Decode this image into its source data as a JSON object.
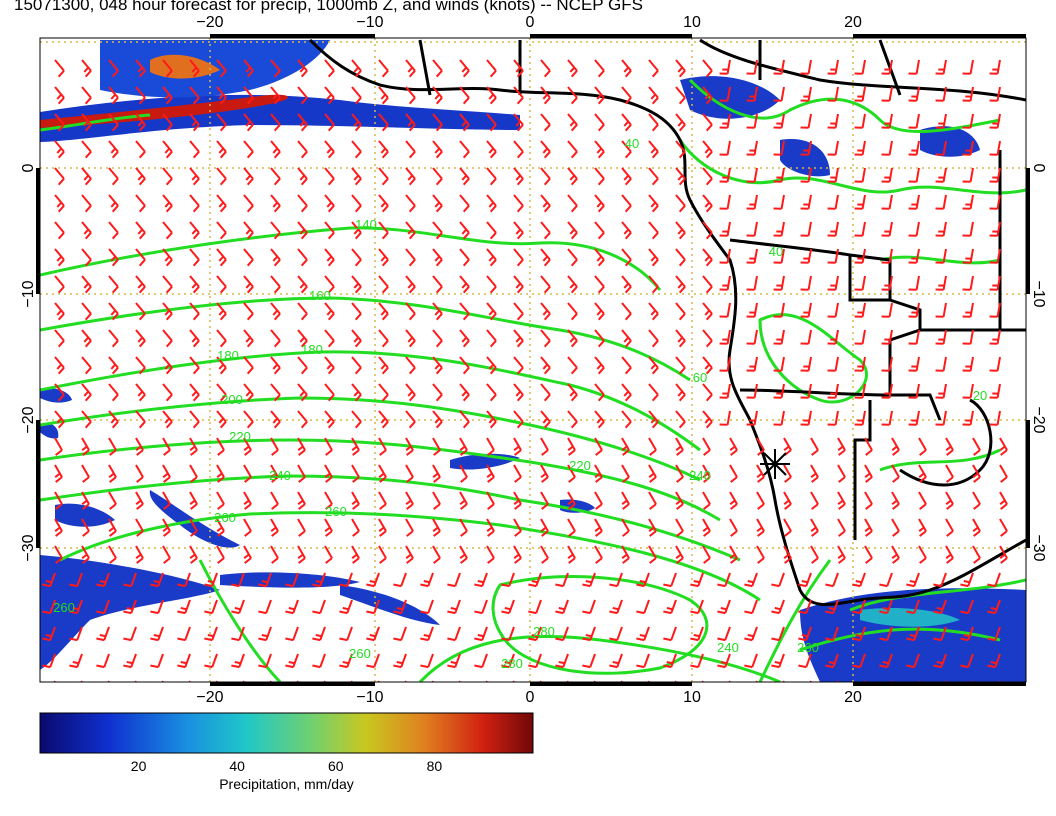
{
  "title": "15071300, 048 hour forecast for precip, 1000mb Z, and winds (knots) -- NCEP GFS",
  "map": {
    "lon_range": [
      -30,
      30
    ],
    "lat_range": [
      -40,
      10
    ],
    "lon_ticks": [
      -20,
      -10,
      0,
      10,
      20
    ],
    "lat_ticks": [
      0,
      -10,
      -20,
      -30
    ],
    "lon_tick_labels": [
      "−20",
      "−10",
      "0",
      "10",
      "20"
    ],
    "lat_tick_labels": [
      "0",
      "−10",
      "−20",
      "−30"
    ],
    "grid_lines": "dotted",
    "grid_color": "#d4b84a",
    "contour_color": "#22dd22",
    "barb_color": "#ff1a1a",
    "coast_color": "#000000",
    "contour_labels": [
      "40",
      "140",
      "160",
      "180",
      "180",
      "200",
      "220",
      "220",
      "240",
      "260",
      "260",
      "280",
      "260",
      "280",
      "240",
      "260",
      "260",
      "240",
      "40",
      "20",
      "60"
    ],
    "marker": "asterisk"
  },
  "colorbar": {
    "title": "Precipitation, mm/day",
    "ticks": [
      "20",
      "40",
      "60",
      "80"
    ],
    "tick_values": [
      20,
      40,
      60,
      80
    ],
    "range": [
      0,
      100
    ],
    "colors": [
      "#0a0a6e",
      "#1030d0",
      "#1a90e0",
      "#20c8c8",
      "#70d070",
      "#c8c820",
      "#e08020",
      "#d02010",
      "#700808"
    ]
  }
}
